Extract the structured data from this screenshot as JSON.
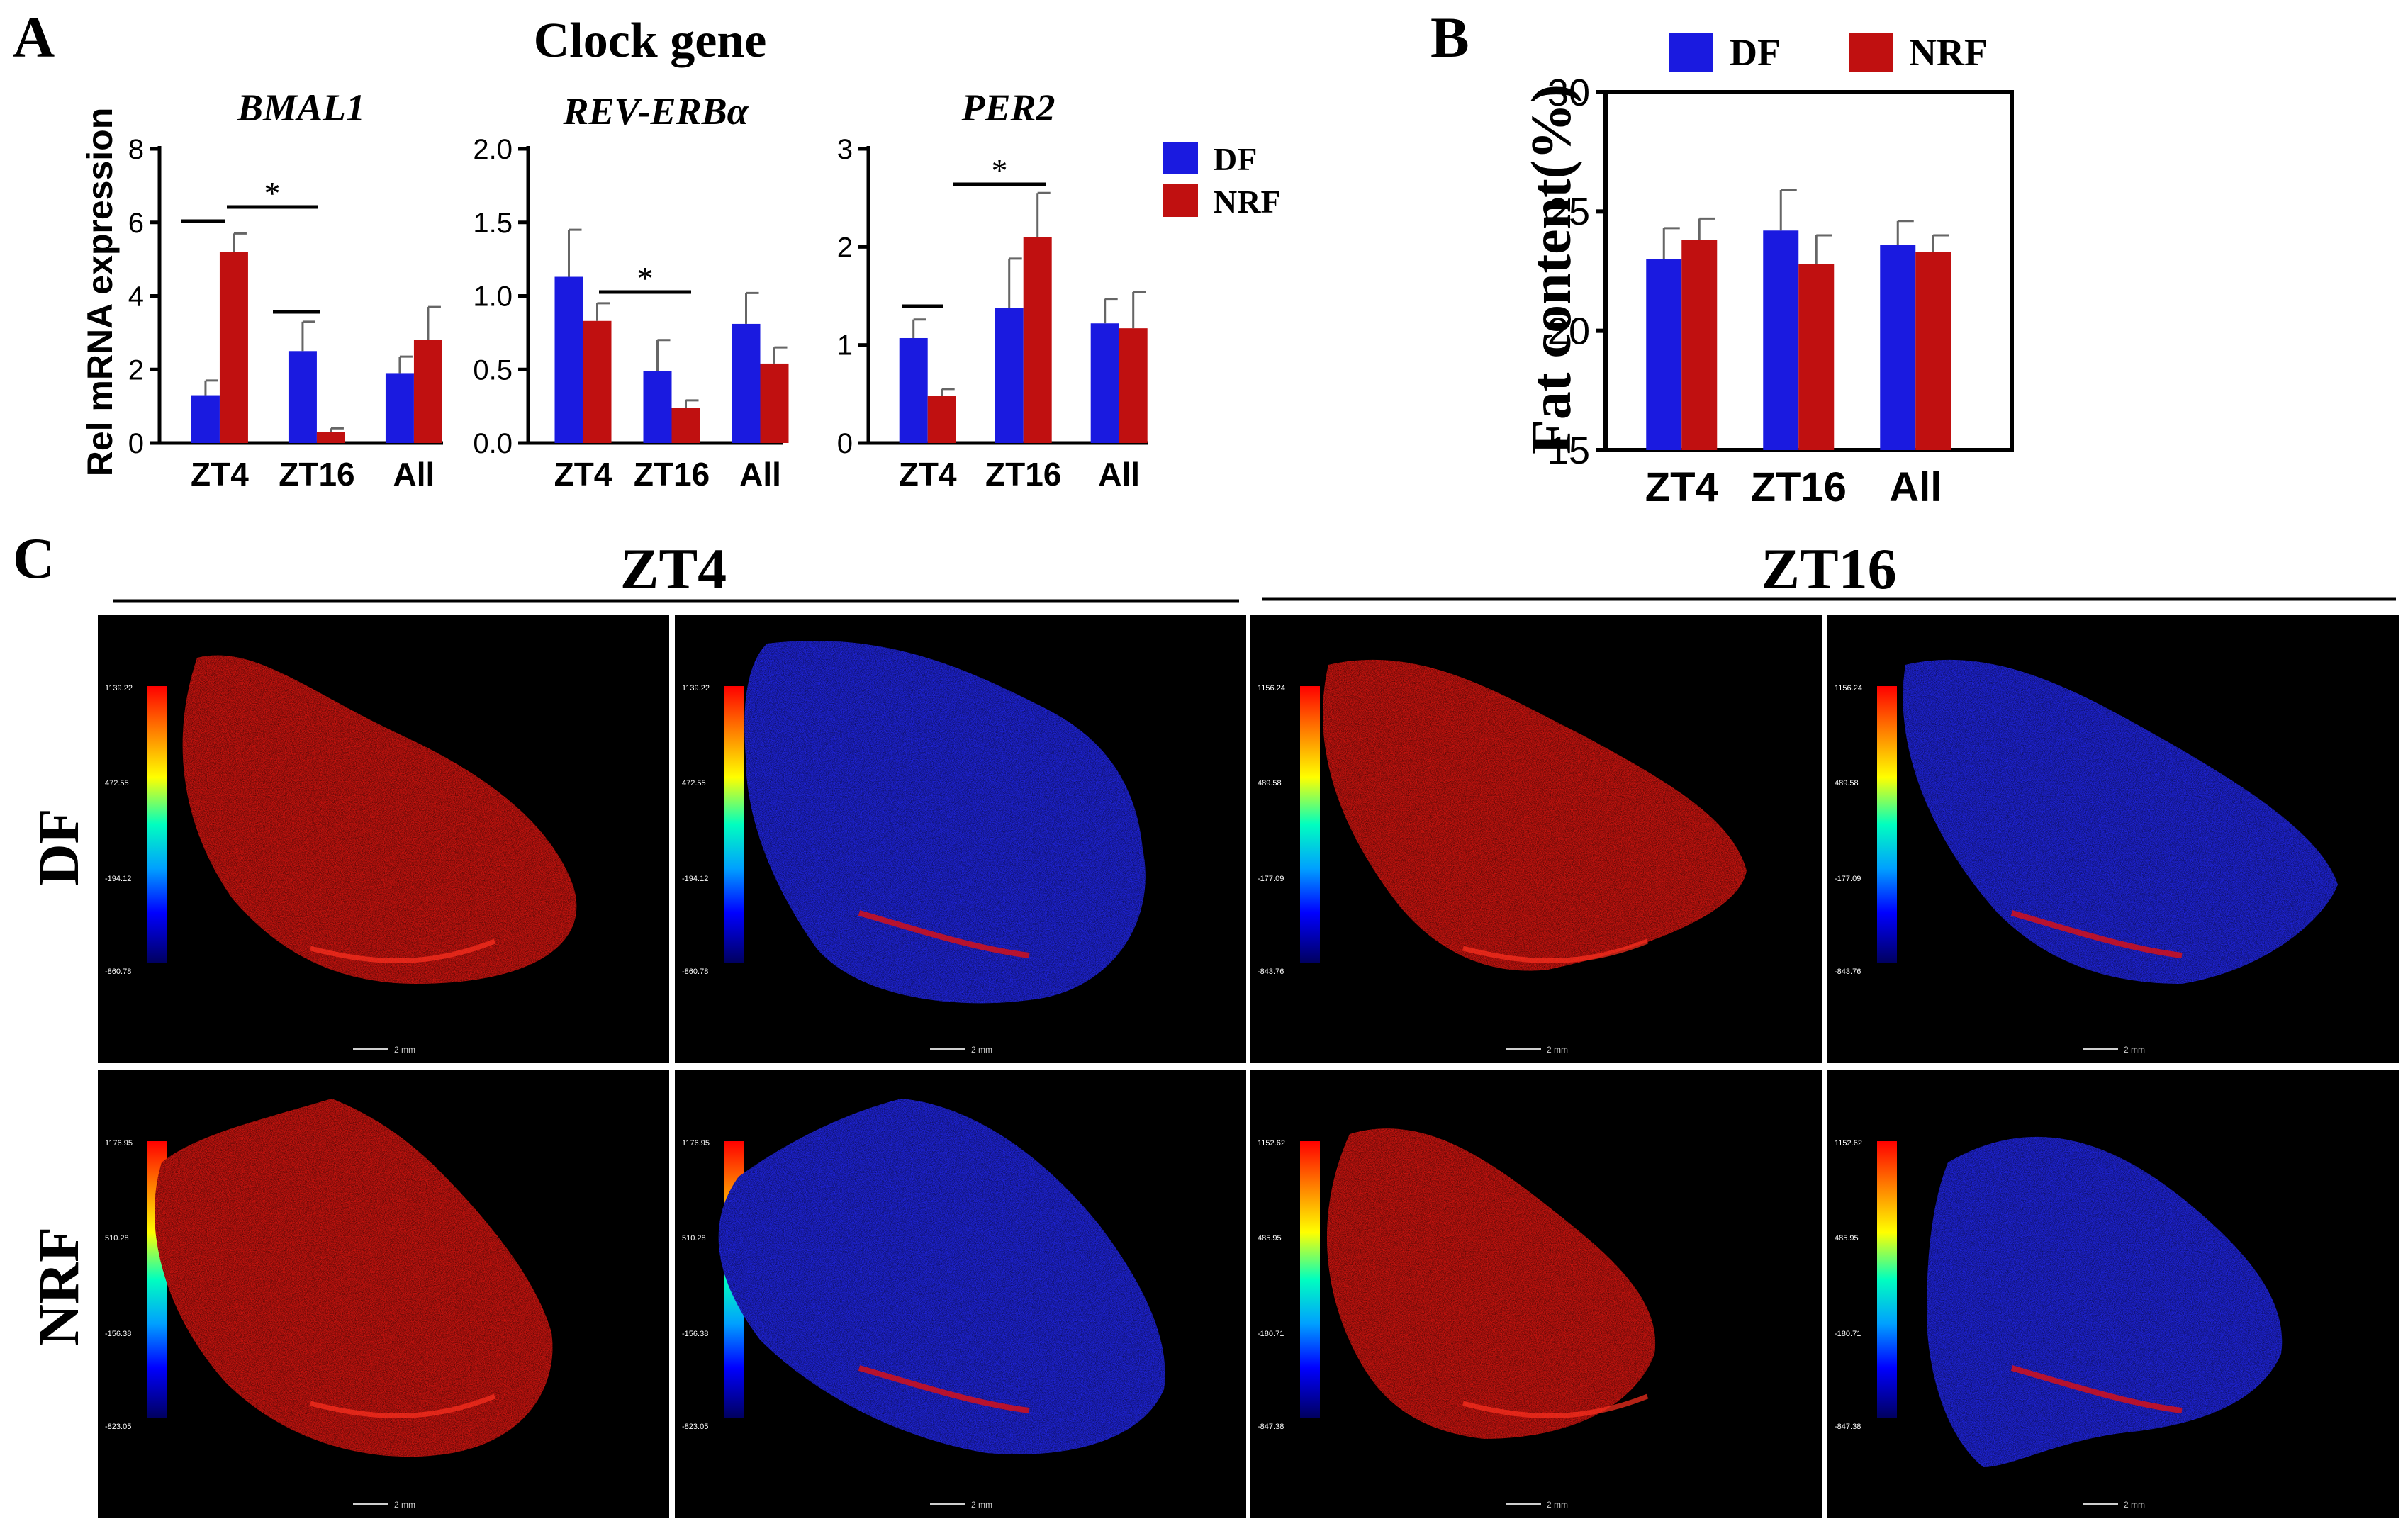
{
  "figure": {
    "panel_labels": {
      "a": "A",
      "b": "B",
      "c": "C"
    },
    "panel_a_title": "Clock gene",
    "panel_a_ylabel": "Rel mRNA expression",
    "legend_a": {
      "df": "DF",
      "nrf": "NRF"
    },
    "legend_b": {
      "df": "DF",
      "nrf": "NRF"
    },
    "panel_c_groups": {
      "left": "ZT4",
      "right": "ZT16"
    },
    "panel_c_rows": {
      "top": "DF",
      "bottom": "NRF"
    },
    "scale_bar_label": "2 mm"
  },
  "colors": {
    "df": "#1a1ae0",
    "nrf": "#c01010",
    "axis": "#000000"
  },
  "chart_data": [
    {
      "type": "bar",
      "id": "bmal1",
      "title": "BMAL1",
      "title_style": "italic",
      "ylabel": "Rel mRNA expression",
      "categories": [
        "ZT4",
        "ZT16",
        "All"
      ],
      "ylim": [
        0,
        8
      ],
      "yticks": [
        "0",
        "2",
        "4",
        "6",
        "8"
      ],
      "series": [
        {
          "name": "DF",
          "values": [
            1.3,
            2.5,
            1.9
          ],
          "errors": [
            0.4,
            0.8,
            0.45
          ]
        },
        {
          "name": "NRF",
          "values": [
            5.2,
            0.3,
            2.8
          ],
          "errors": [
            0.5,
            0.1,
            0.9
          ]
        }
      ],
      "annotations": [
        "*"
      ]
    },
    {
      "type": "bar",
      "id": "reverb",
      "title": "REV-ERBα",
      "title_style": "italic",
      "categories": [
        "ZT4",
        "ZT16",
        "All"
      ],
      "ylim": [
        0,
        2.0
      ],
      "yticks": [
        "0.0",
        "0.5",
        "1.0",
        "1.5",
        "2.0"
      ],
      "series": [
        {
          "name": "DF",
          "values": [
            1.13,
            0.49,
            0.81
          ],
          "errors": [
            0.32,
            0.21,
            0.21
          ]
        },
        {
          "name": "NRF",
          "values": [
            0.83,
            0.24,
            0.54
          ],
          "errors": [
            0.12,
            0.05,
            0.11
          ]
        }
      ],
      "annotations": [
        "*"
      ]
    },
    {
      "type": "bar",
      "id": "per2",
      "title": "PER2",
      "title_style": "italic",
      "categories": [
        "ZT4",
        "ZT16",
        "All"
      ],
      "ylim": [
        0,
        3
      ],
      "yticks": [
        "0",
        "1",
        "2",
        "3"
      ],
      "series": [
        {
          "name": "DF",
          "values": [
            1.07,
            1.38,
            1.22
          ],
          "errors": [
            0.19,
            0.5,
            0.25
          ]
        },
        {
          "name": "NRF",
          "values": [
            0.48,
            2.1,
            1.17
          ],
          "errors": [
            0.07,
            0.45,
            0.37
          ]
        }
      ],
      "annotations": [
        "*"
      ]
    },
    {
      "type": "bar",
      "id": "fat",
      "title": "",
      "ylabel": "Fat content(%)",
      "categories": [
        "ZT4",
        "ZT16",
        "All"
      ],
      "ylim": [
        15,
        30
      ],
      "yticks": [
        "15",
        "20",
        "25",
        "30"
      ],
      "series": [
        {
          "name": "DF",
          "values": [
            23.0,
            24.2,
            23.6
          ],
          "errors": [
            1.3,
            1.7,
            1.0
          ]
        },
        {
          "name": "NRF",
          "values": [
            23.8,
            22.8,
            23.3
          ],
          "errors": [
            0.9,
            1.2,
            0.7
          ]
        }
      ]
    }
  ],
  "scan_tiles": [
    {
      "id": "zt4-df-fat",
      "scale": [
        "1139.22",
        "472.55",
        "-194.12",
        "-860.78"
      ]
    },
    {
      "id": "zt4-df-full",
      "scale": [
        "1139.22",
        "472.55",
        "-194.12",
        "-860.78"
      ]
    },
    {
      "id": "zt16-df-fat",
      "scale": [
        "1156.24",
        "489.58",
        "-177.09",
        "-843.76"
      ]
    },
    {
      "id": "zt16-df-full",
      "scale": [
        "1156.24",
        "489.58",
        "-177.09",
        "-843.76"
      ]
    },
    {
      "id": "zt4-nrf-fat",
      "scale": [
        "1176.95",
        "510.28",
        "-156.38",
        "-823.05"
      ]
    },
    {
      "id": "zt4-nrf-full",
      "scale": [
        "1176.95",
        "510.28",
        "-156.38",
        "-823.05"
      ]
    },
    {
      "id": "zt16-nrf-fat",
      "scale": [
        "1152.62",
        "485.95",
        "-180.71",
        "-847.38"
      ]
    },
    {
      "id": "zt16-nrf-full",
      "scale": [
        "1152.62",
        "485.95",
        "-180.71",
        "-847.38"
      ]
    }
  ]
}
